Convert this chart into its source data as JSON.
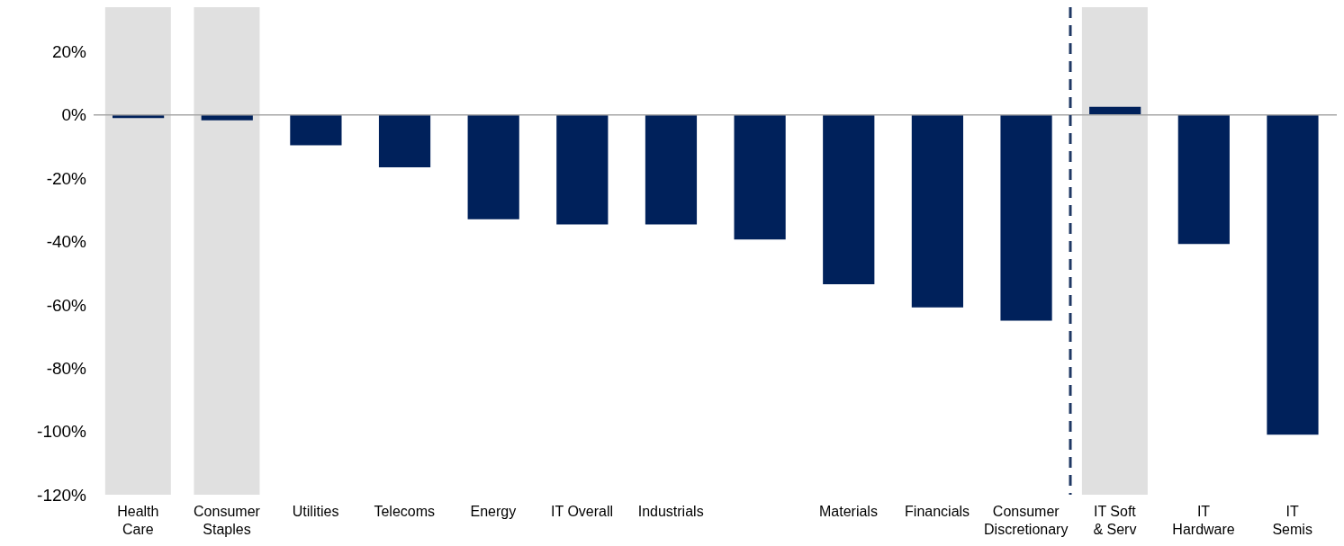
{
  "chart_data": {
    "type": "bar",
    "categories": [
      "Health\nCare",
      "Consumer\nStaples",
      "Utilities",
      "Telecoms",
      "Energy",
      "IT Overall",
      "Industrials",
      null,
      "Materials",
      "Financials",
      "Consumer\nDiscretionary",
      "IT Soft\n& Serv",
      "IT\nHardware",
      "IT\nSemis"
    ],
    "values": [
      -1,
      -1.7,
      -9.6,
      -16.6,
      -33,
      -34.6,
      -34.6,
      -39.4,
      -53.5,
      -60.8,
      -65,
      2.5,
      -40.8,
      -101
    ],
    "color": "#00215b",
    "ylim": [
      -120,
      34
    ],
    "yticks": [
      {
        "value": -120,
        "label": "-120%"
      },
      {
        "value": -100,
        "label": "-100%"
      },
      {
        "value": -80,
        "label": "-80%"
      },
      {
        "value": -60,
        "label": "-60%"
      },
      {
        "value": -40,
        "label": "-40%"
      },
      {
        "value": -20,
        "label": "-20%"
      },
      {
        "value": 0,
        "label": "0%"
      },
      {
        "value": 20,
        "label": "20%"
      }
    ],
    "grid": false,
    "legend": false,
    "ref_lines": [
      {
        "axis": "y",
        "value": 0,
        "color": "#a6a6a6"
      },
      {
        "axis": "x",
        "value": "IT Soft\n& Serv",
        "color": "#1f3864",
        "line_style": "dashed"
      }
    ],
    "bands": [
      {
        "axis": "x",
        "from": "Health\nCare",
        "to": "Health\nCare",
        "color": "#e0e0e0"
      },
      {
        "axis": "x",
        "from": "Consumer\nStaples",
        "to": "Consumer\nStaples",
        "color": "#e0e0e0"
      },
      {
        "axis": "x",
        "from": "IT Soft\n& Serv",
        "to": "IT Soft\n& Serv",
        "color": "#e0e0e0"
      }
    ]
  }
}
